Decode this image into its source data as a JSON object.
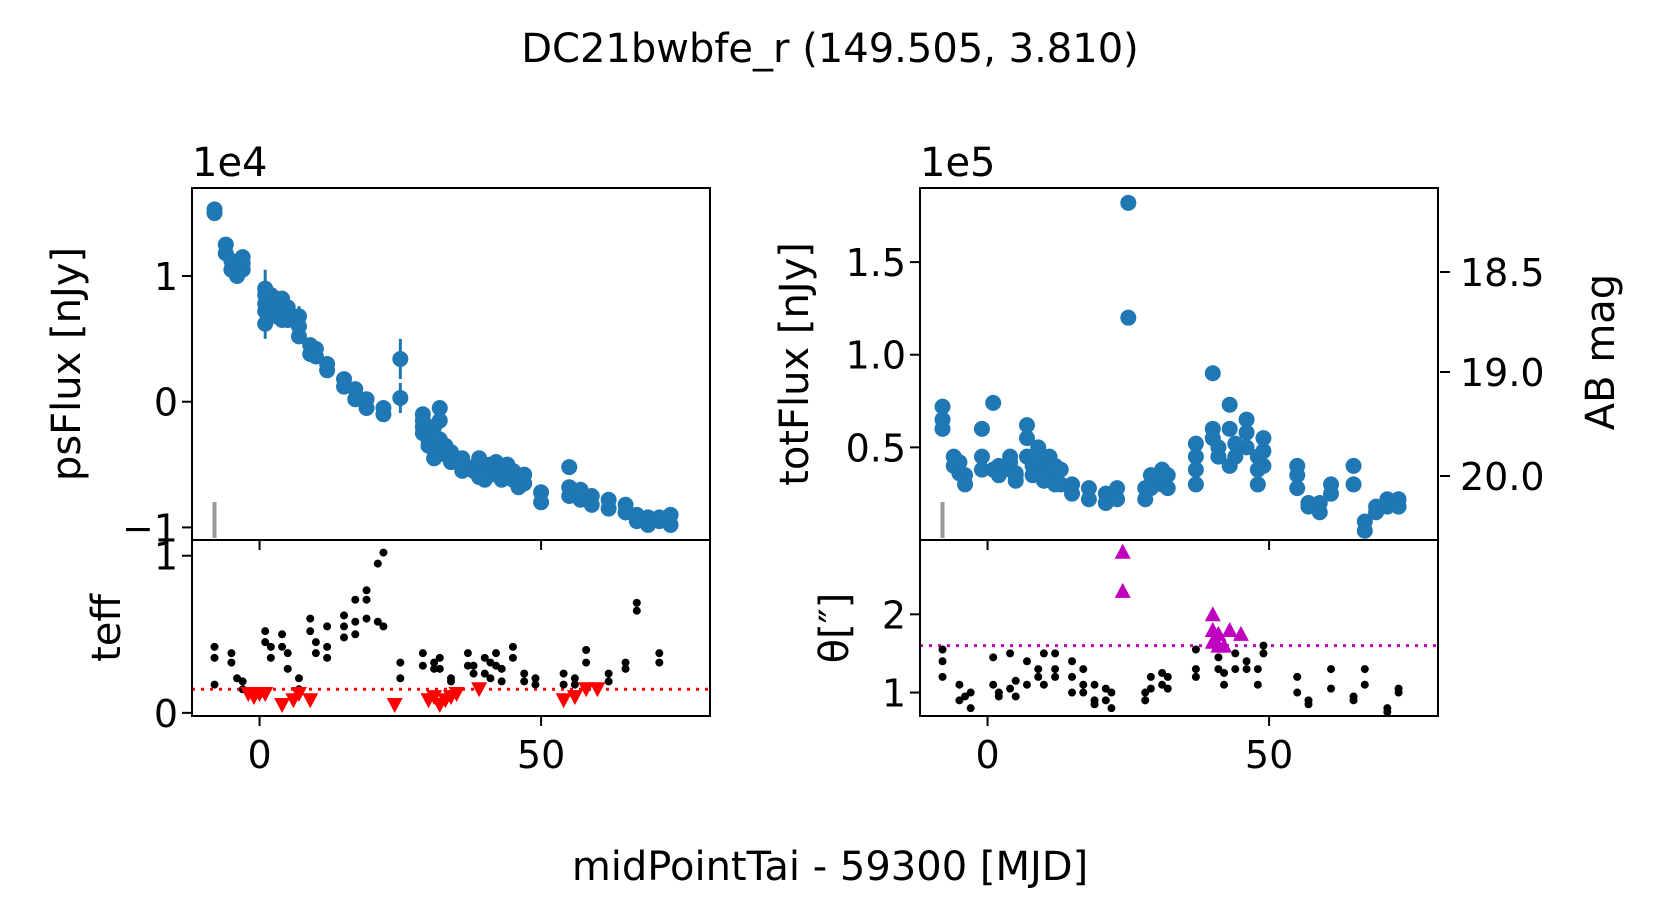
{
  "figure": {
    "title": "DC21bwbfe_r (149.505, 3.810)",
    "xlabel": "midPointTai - 59300 [MJD]",
    "xlim": [
      -12,
      80
    ],
    "xticks": [
      0,
      50
    ],
    "xticklabels": [
      "0",
      "50"
    ]
  },
  "colors": {
    "blue": "#1f77b4",
    "red": "#ff0000",
    "magenta": "#bf00bf",
    "gray": "#999999",
    "black": "#000000"
  },
  "chart_data": [
    {
      "id": "psflux",
      "type": "scatter",
      "ylabel": "psFlux [nJy]",
      "offset_text": "1e4",
      "ylim": [
        -1.1,
        1.7
      ],
      "yticks": [
        -1,
        0,
        1
      ],
      "yticklabels": [
        "−1",
        "0",
        "1"
      ],
      "marker_x": -8,
      "x": [
        -8,
        -8,
        -6,
        -6,
        -5,
        -5,
        -4,
        -4,
        -3,
        -3,
        -3,
        1,
        1,
        1,
        1,
        1,
        2,
        2,
        3,
        3,
        3,
        4,
        4,
        4,
        5,
        5,
        5,
        7,
        7,
        7,
        9,
        9,
        10,
        10,
        12,
        12,
        15,
        15,
        17,
        17,
        19,
        19,
        22,
        22,
        25,
        25,
        29,
        29,
        29,
        29,
        30,
        30,
        30,
        30,
        31,
        31,
        31,
        31,
        31,
        32,
        32,
        32,
        33,
        33,
        34,
        34,
        36,
        36,
        36,
        36,
        38,
        38,
        39,
        39,
        40,
        40,
        40,
        41,
        42,
        42,
        43,
        43,
        44,
        44,
        45,
        45,
        46,
        46,
        47,
        47,
        50,
        50,
        55,
        55,
        55,
        57,
        57,
        59,
        59,
        62,
        62,
        65,
        65,
        67,
        67,
        69,
        69,
        71,
        71,
        73,
        73
      ],
      "y": [
        1.5,
        1.53,
        1.25,
        1.18,
        1.12,
        1.05,
        1.0,
        1.08,
        1.15,
        1.05,
        1.1,
        0.9,
        0.78,
        0.62,
        0.72,
        0.85,
        0.85,
        0.72,
        0.82,
        0.75,
        0.68,
        0.82,
        0.72,
        0.65,
        0.75,
        0.7,
        0.65,
        0.68,
        0.6,
        0.52,
        0.45,
        0.38,
        0.42,
        0.36,
        0.3,
        0.25,
        0.18,
        0.12,
        0.1,
        0.02,
        0.02,
        -0.05,
        -0.05,
        -0.1,
        0.34,
        0.03,
        -0.1,
        -0.15,
        -0.2,
        -0.25,
        -0.2,
        -0.3,
        -0.25,
        -0.35,
        -0.28,
        -0.32,
        -0.38,
        -0.45,
        -0.2,
        -0.05,
        -0.15,
        -0.3,
        -0.35,
        -0.42,
        -0.4,
        -0.48,
        -0.45,
        -0.5,
        -0.55,
        -0.48,
        -0.52,
        -0.55,
        -0.6,
        -0.45,
        -0.5,
        -0.55,
        -0.62,
        -0.5,
        -0.48,
        -0.58,
        -0.52,
        -0.62,
        -0.5,
        -0.58,
        -0.55,
        -0.62,
        -0.6,
        -0.68,
        -0.65,
        -0.58,
        -0.72,
        -0.8,
        -0.52,
        -0.68,
        -0.75,
        -0.78,
        -0.7,
        -0.82,
        -0.75,
        -0.85,
        -0.78,
        -0.88,
        -0.82,
        -0.95,
        -0.9,
        -0.92,
        -0.98,
        -0.95,
        -0.92,
        -0.98,
        -0.9
      ],
      "err": [
        0.04,
        0.04,
        0.05,
        0.05,
        0.05,
        0.05,
        0.05,
        0.05,
        0.05,
        0.05,
        0.05,
        0.15,
        0.1,
        0.12,
        0.08,
        0.1,
        0.05,
        0.05,
        0.05,
        0.05,
        0.05,
        0.05,
        0.05,
        0.05,
        0.05,
        0.05,
        0.05,
        0.08,
        0.05,
        0.05,
        0.05,
        0.05,
        0.05,
        0.05,
        0.05,
        0.05,
        0.05,
        0.05,
        0.05,
        0.05,
        0.05,
        0.05,
        0.05,
        0.05,
        0.16,
        0.12,
        0.06,
        0.06,
        0.06,
        0.06,
        0.06,
        0.06,
        0.06,
        0.06,
        0.06,
        0.06,
        0.06,
        0.06,
        0.06,
        0.06,
        0.06,
        0.06,
        0.06,
        0.06,
        0.05,
        0.05,
        0.05,
        0.05,
        0.05,
        0.05,
        0.05,
        0.05,
        0.05,
        0.05,
        0.05,
        0.05,
        0.05,
        0.05,
        0.05,
        0.05,
        0.05,
        0.05,
        0.05,
        0.05,
        0.05,
        0.05,
        0.05,
        0.05,
        0.05,
        0.05,
        0.05,
        0.05,
        0.05,
        0.05,
        0.05,
        0.05,
        0.05,
        0.05,
        0.05,
        0.05,
        0.05,
        0.05,
        0.05,
        0.05,
        0.05,
        0.05,
        0.05,
        0.05,
        0.05,
        0.05,
        0.05
      ]
    },
    {
      "id": "totflux",
      "type": "scatter",
      "ylabel": "totFlux [nJy]",
      "offset_text": "1e5",
      "ylim": [
        0.0,
        1.9
      ],
      "yticks": [
        0.5,
        1.0,
        1.5
      ],
      "yticklabels": [
        "0.5",
        "1.0",
        "1.5"
      ],
      "marker_x": -8,
      "x": [
        -8,
        -8,
        -8,
        -6,
        -6,
        -5,
        -5,
        -4,
        -4,
        -1,
        -1,
        -1,
        1,
        1,
        2,
        2,
        4,
        4,
        4,
        5,
        5,
        5,
        7,
        7,
        7,
        8,
        8,
        9,
        9,
        10,
        10,
        11,
        11,
        12,
        12,
        13,
        13,
        15,
        15,
        18,
        18,
        21,
        21,
        23,
        23,
        25,
        25,
        28,
        28,
        29,
        29,
        31,
        31,
        32,
        32,
        37,
        37,
        37,
        37,
        40,
        40,
        40,
        41,
        41,
        43,
        43,
        43,
        44,
        44,
        46,
        46,
        46,
        48,
        48,
        48,
        49,
        49,
        49,
        55,
        55,
        55,
        57,
        57,
        59,
        59,
        61,
        61,
        65,
        65,
        67,
        67,
        69,
        69,
        71,
        71,
        73,
        73
      ],
      "y": [
        0.72,
        0.65,
        0.6,
        0.45,
        0.4,
        0.42,
        0.36,
        0.35,
        0.3,
        0.6,
        0.45,
        0.38,
        0.74,
        0.38,
        0.4,
        0.35,
        0.38,
        0.42,
        0.45,
        0.36,
        0.32,
        0.35,
        0.62,
        0.55,
        0.45,
        0.4,
        0.35,
        0.5,
        0.42,
        0.38,
        0.32,
        0.45,
        0.35,
        0.4,
        0.3,
        0.38,
        0.3,
        0.3,
        0.25,
        0.28,
        0.22,
        0.25,
        0.2,
        0.28,
        0.22,
        1.82,
        1.2,
        0.28,
        0.22,
        0.35,
        0.28,
        0.38,
        0.3,
        0.35,
        0.28,
        0.52,
        0.45,
        0.38,
        0.3,
        0.9,
        0.6,
        0.55,
        0.5,
        0.45,
        0.73,
        0.6,
        0.4,
        0.52,
        0.45,
        0.65,
        0.58,
        0.5,
        0.45,
        0.38,
        0.3,
        0.55,
        0.48,
        0.4,
        0.4,
        0.35,
        0.28,
        0.2,
        0.18,
        0.2,
        0.15,
        0.3,
        0.25,
        0.4,
        0.3,
        0.1,
        0.05,
        0.18,
        0.15,
        0.22,
        0.18,
        0.22,
        0.18
      ]
    },
    {
      "id": "teff",
      "type": "scatter",
      "ylabel": "teff",
      "ylim": [
        -0.02,
        1.1
      ],
      "yticks": [
        0,
        1
      ],
      "yticklabels": [
        "0",
        "1"
      ],
      "threshold": 0.15,
      "points_x": [
        -8,
        -8,
        -8,
        -5,
        -5,
        -4,
        -3,
        -3,
        1,
        1,
        2,
        2,
        4,
        4,
        5,
        5,
        7,
        7,
        9,
        9,
        10,
        10,
        12,
        12,
        12,
        15,
        15,
        15,
        17,
        17,
        17,
        19,
        19,
        19,
        21,
        21,
        22,
        22,
        25,
        25,
        29,
        29,
        31,
        31,
        32,
        32,
        34,
        34,
        37,
        37,
        38,
        38,
        40,
        40,
        41,
        41,
        42,
        42,
        43,
        43,
        45,
        45,
        47,
        47,
        49,
        49,
        54,
        54,
        56,
        56,
        58,
        58,
        62,
        62,
        65,
        65,
        67,
        67,
        71,
        71
      ],
      "points_y": [
        0.42,
        0.35,
        0.18,
        0.38,
        0.32,
        0.22,
        0.2,
        0.15,
        0.52,
        0.45,
        0.42,
        0.35,
        0.5,
        0.42,
        0.38,
        0.28,
        0.22,
        0.15,
        0.6,
        0.52,
        0.45,
        0.38,
        0.55,
        0.42,
        0.35,
        0.62,
        0.55,
        0.48,
        0.72,
        0.58,
        0.5,
        0.78,
        0.72,
        0.6,
        0.95,
        0.58,
        1.02,
        0.55,
        0.32,
        0.22,
        0.38,
        0.3,
        0.32,
        0.28,
        0.35,
        0.28,
        0.22,
        0.2,
        0.38,
        0.3,
        0.3,
        0.25,
        0.35,
        0.25,
        0.32,
        0.22,
        0.38,
        0.3,
        0.28,
        0.2,
        0.42,
        0.35,
        0.25,
        0.2,
        0.22,
        0.18,
        0.25,
        0.18,
        0.22,
        0.18,
        0.4,
        0.32,
        0.25,
        0.2,
        0.32,
        0.28,
        0.7,
        0.65,
        0.38,
        0.32
      ],
      "limits_x": [
        -2,
        -1,
        0,
        1,
        4,
        6,
        7,
        9,
        24,
        30,
        31,
        32,
        33,
        34,
        35,
        39,
        54,
        56,
        58,
        60
      ],
      "limits_y": [
        0.12,
        0.1,
        0.12,
        0.12,
        0.05,
        0.08,
        0.12,
        0.08,
        0.05,
        0.08,
        0.1,
        0.05,
        0.08,
        0.1,
        0.12,
        0.15,
        0.08,
        0.1,
        0.15,
        0.15
      ]
    },
    {
      "id": "theta",
      "type": "scatter",
      "ylabel": "θ[″]",
      "ylim": [
        0.7,
        2.95
      ],
      "yticks": [
        1,
        2
      ],
      "yticklabels": [
        "1",
        "2"
      ],
      "threshold": 1.6,
      "points_x": [
        -8,
        -8,
        -8,
        -5,
        -5,
        -4,
        -3,
        -3,
        1,
        1,
        2,
        2,
        4,
        4,
        5,
        5,
        7,
        7,
        9,
        9,
        10,
        10,
        12,
        12,
        12,
        15,
        15,
        15,
        17,
        17,
        17,
        19,
        19,
        19,
        21,
        21,
        22,
        22,
        28,
        28,
        29,
        29,
        31,
        31,
        32,
        32,
        37,
        37,
        37,
        41,
        41,
        42,
        42,
        44,
        44,
        46,
        46,
        48,
        48,
        49,
        49,
        55,
        55,
        57,
        57,
        61,
        61,
        65,
        65,
        67,
        67,
        71,
        71,
        73,
        73
      ],
      "points_y": [
        1.55,
        1.4,
        1.2,
        1.1,
        0.9,
        0.95,
        0.8,
        1.0,
        1.45,
        1.1,
        1.0,
        0.95,
        1.5,
        1.05,
        1.15,
        0.95,
        1.4,
        1.1,
        1.3,
        1.2,
        1.5,
        1.1,
        1.5,
        1.3,
        1.2,
        1.4,
        1.2,
        1.0,
        1.3,
        1.1,
        1.0,
        1.1,
        0.9,
        0.85,
        1.05,
        0.9,
        1.0,
        0.8,
        1.0,
        0.9,
        1.2,
        1.05,
        1.25,
        1.1,
        1.2,
        1.05,
        1.55,
        1.3,
        1.2,
        1.45,
        1.3,
        1.25,
        1.1,
        1.5,
        1.3,
        1.4,
        1.3,
        1.3,
        1.1,
        1.6,
        1.5,
        1.2,
        1.0,
        0.9,
        0.85,
        1.3,
        1.05,
        0.95,
        0.9,
        1.3,
        1.1,
        0.8,
        0.75,
        1.05,
        1.0
      ],
      "limits_x": [
        24,
        24,
        40,
        40,
        40,
        41,
        41,
        42,
        43,
        45
      ],
      "limits_y": [
        2.8,
        2.3,
        2.0,
        1.8,
        1.65,
        1.75,
        1.6,
        1.6,
        1.8,
        1.75
      ]
    }
  ]
}
